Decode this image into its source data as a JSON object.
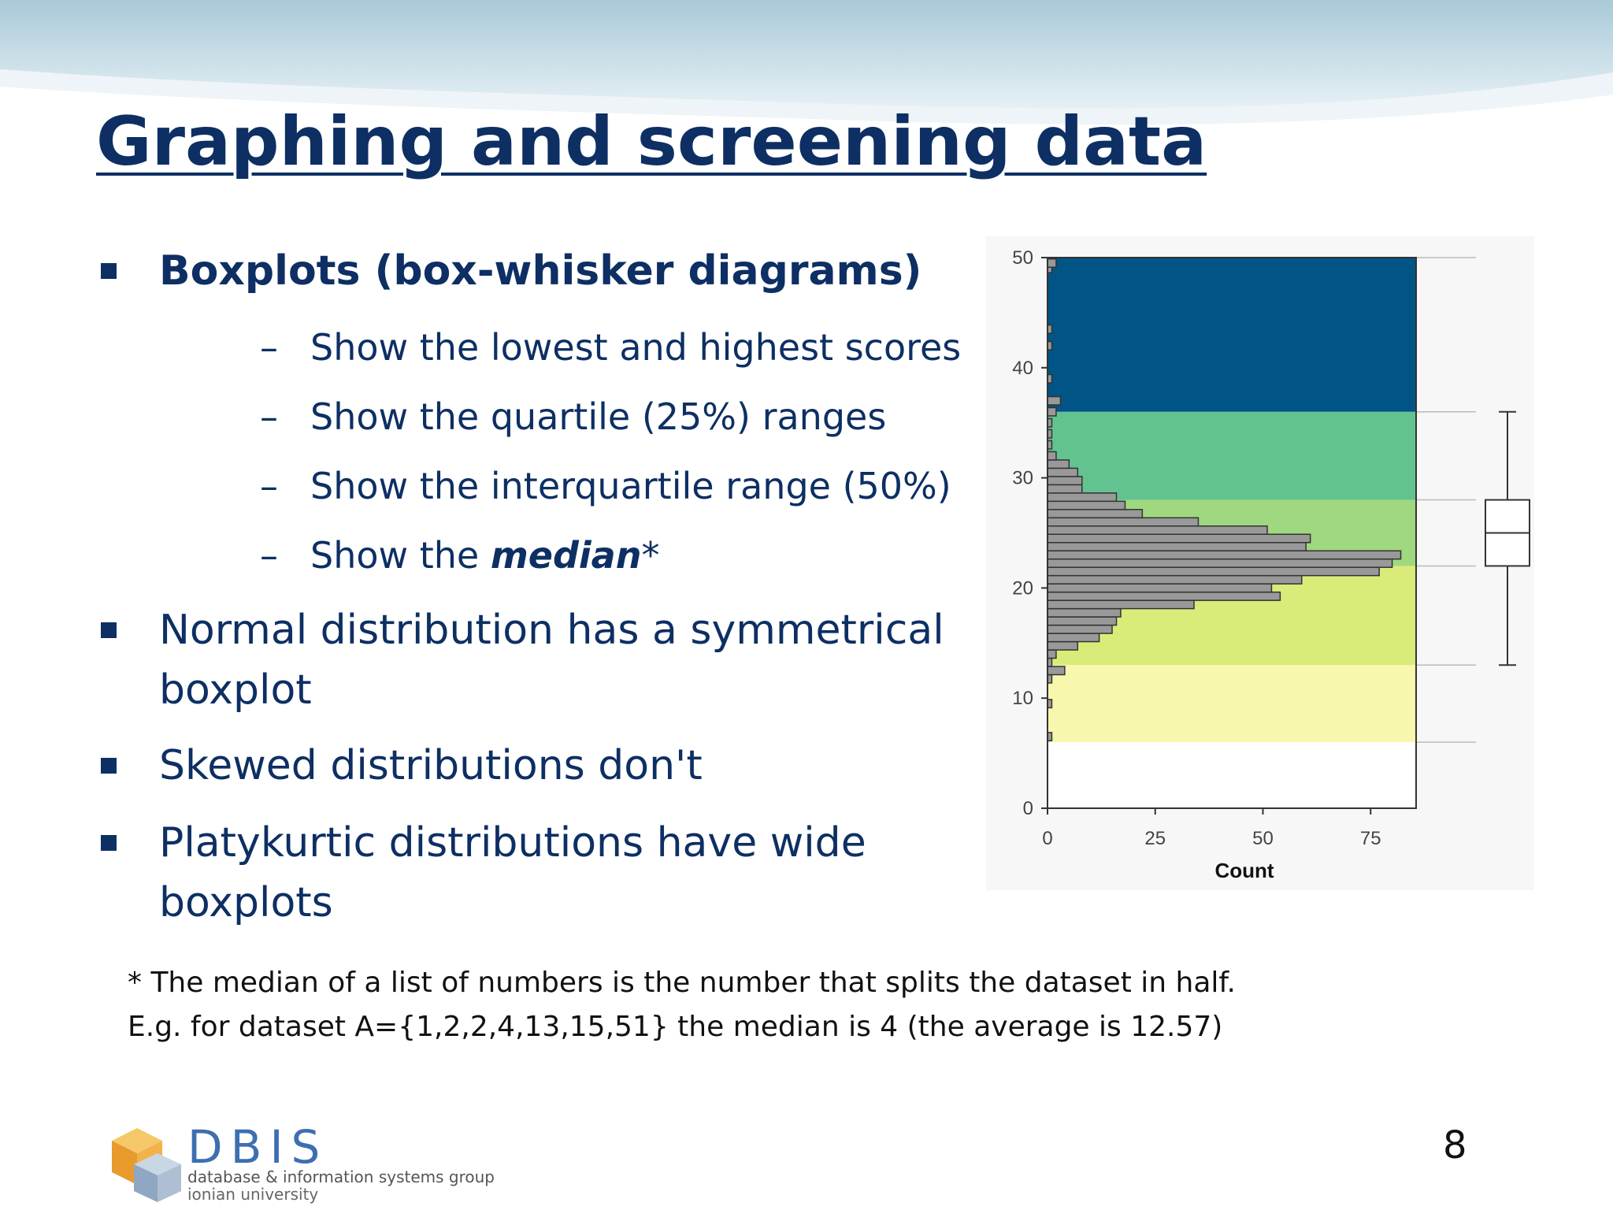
{
  "slide": {
    "title": "Graphing and screening data",
    "page_number": "8"
  },
  "bullets": [
    {
      "text": "Boxplots (box-whisker diagrams)"
    },
    {
      "line1": "Normal distribution has a symmetrical",
      "line2": "boxplot"
    },
    {
      "text": "Skewed distributions don't"
    },
    {
      "line1": "Platykurtic distributions have wide",
      "line2": "boxplots"
    }
  ],
  "subbullets": [
    {
      "dash": "–",
      "text": "Show the lowest and highest scores"
    },
    {
      "dash": "–",
      "text": "Show the quartile (25%) ranges"
    },
    {
      "dash": "–",
      "text": "Show the interquartile range (50%)"
    },
    {
      "dash": "–",
      "prefix": "Show the ",
      "emph": "median",
      "suffix": "*"
    }
  ],
  "footnote": {
    "line1": "* The median of a list of numbers is the number that splits the dataset in half.",
    "line2": "E.g. for dataset A={1,2,2,4,13,15,51} the median is 4 (the average is 12.57)"
  },
  "logo": {
    "name": "DBIS",
    "subtitle": "database & information systems group",
    "institution": "ionian university"
  },
  "colors": {
    "title": "#0d2f63",
    "band_top": "#005586",
    "band_upper": "#62c391",
    "band_iqr_upper": "#9fd87e",
    "band_iqr_lower": "#d9ec7a",
    "band_bottom": "#f7f8ad",
    "bar": "#999999"
  },
  "chart_data": {
    "type": "bar",
    "orientation": "horizontal",
    "xlabel": "Count",
    "ylabel": "",
    "xlim": [
      0,
      85
    ],
    "ylim": [
      0,
      50
    ],
    "xticks": [
      "0",
      "25",
      "50",
      "75"
    ],
    "yticks": [
      "0",
      "10",
      "20",
      "30",
      "40",
      "50"
    ],
    "bin_width": 0.75,
    "bins": [
      {
        "y": 6.5,
        "count": 1
      },
      {
        "y": 9.5,
        "count": 1
      },
      {
        "y": 11.75,
        "count": 1
      },
      {
        "y": 12.5,
        "count": 4
      },
      {
        "y": 13.25,
        "count": 1
      },
      {
        "y": 14.0,
        "count": 2
      },
      {
        "y": 14.75,
        "count": 7
      },
      {
        "y": 15.5,
        "count": 12
      },
      {
        "y": 16.25,
        "count": 15
      },
      {
        "y": 17.0,
        "count": 16
      },
      {
        "y": 17.75,
        "count": 17
      },
      {
        "y": 18.5,
        "count": 34
      },
      {
        "y": 19.25,
        "count": 54
      },
      {
        "y": 20.0,
        "count": 52
      },
      {
        "y": 20.75,
        "count": 59
      },
      {
        "y": 21.5,
        "count": 77
      },
      {
        "y": 22.25,
        "count": 80
      },
      {
        "y": 23.0,
        "count": 82
      },
      {
        "y": 23.75,
        "count": 60
      },
      {
        "y": 24.5,
        "count": 61
      },
      {
        "y": 25.25,
        "count": 51
      },
      {
        "y": 26.0,
        "count": 35
      },
      {
        "y": 26.75,
        "count": 22
      },
      {
        "y": 27.5,
        "count": 18
      },
      {
        "y": 28.25,
        "count": 16
      },
      {
        "y": 29.0,
        "count": 8
      },
      {
        "y": 29.75,
        "count": 8
      },
      {
        "y": 30.5,
        "count": 7
      },
      {
        "y": 31.25,
        "count": 5
      },
      {
        "y": 32.0,
        "count": 2
      },
      {
        "y": 33.0,
        "count": 1
      },
      {
        "y": 34.0,
        "count": 1
      },
      {
        "y": 35.0,
        "count": 1
      },
      {
        "y": 36.0,
        "count": 2
      },
      {
        "y": 37.0,
        "count": 3
      },
      {
        "y": 39.0,
        "count": 1
      },
      {
        "y": 42.0,
        "count": 1
      },
      {
        "y": 43.5,
        "count": 1
      },
      {
        "y": 49.0,
        "count": 1
      },
      {
        "y": 49.5,
        "count": 2
      }
    ],
    "bands": [
      {
        "from": 6,
        "to": 13,
        "color": "#f7f8ad"
      },
      {
        "from": 13,
        "to": 22,
        "color": "#d9ec7a"
      },
      {
        "from": 22,
        "to": 28,
        "color": "#9fd87e"
      },
      {
        "from": 28,
        "to": 36,
        "color": "#62c391"
      },
      {
        "from": 36,
        "to": 50,
        "color": "#005586"
      }
    ],
    "boxplot": {
      "min": 13,
      "q1": 22,
      "median": 25,
      "q3": 28,
      "max": 36
    },
    "grid": false,
    "legend": "none"
  }
}
